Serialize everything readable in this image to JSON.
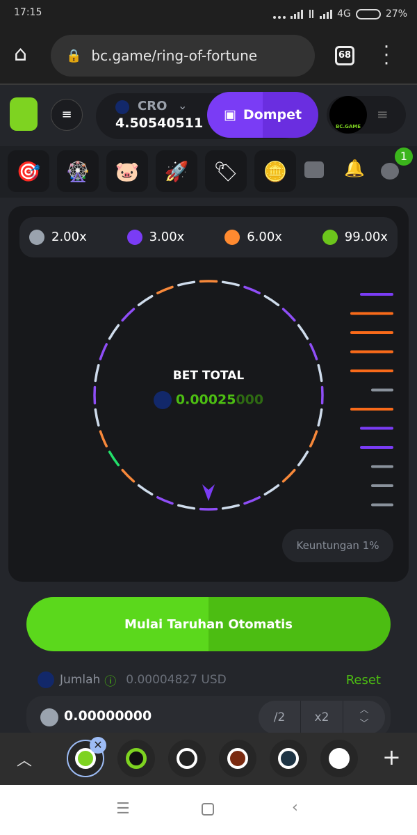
{
  "status": {
    "time": "17:15",
    "network": "4G",
    "battery": "27%"
  },
  "browser": {
    "url": "bc.game/ring-of-fortune",
    "tab_count": "68"
  },
  "header": {
    "currency": "CRO",
    "balance": "4.50540511",
    "wallet_label": "Dompet",
    "avatar_text": "BC.GAME"
  },
  "quick_icons": [
    "target-icon",
    "wheel-icon",
    "piggy-bank-icon",
    "rocket-icon",
    "price-tag-icon",
    "coin-icon"
  ],
  "chat_badge": "1",
  "multipliers": [
    {
      "label": "2.00x",
      "color": "#9aa3ae"
    },
    {
      "label": "3.00x",
      "color": "#7a3cf5"
    },
    {
      "label": "6.00x",
      "color": "#ff8a30"
    },
    {
      "label": "99.00x",
      "color": "#6cc51c"
    }
  ],
  "ring": {
    "title": "BET TOTAL",
    "amount_main": "0.00025",
    "amount_trail": "000",
    "segments": [
      "O",
      "W",
      "P",
      "W",
      "P",
      "W",
      "P",
      "W",
      "P",
      "W",
      "O",
      "W",
      "O",
      "W",
      "P",
      "W",
      "P",
      "W",
      "P",
      "W",
      "O",
      "G",
      "O",
      "W",
      "P",
      "W",
      "P",
      "W",
      "P",
      "W",
      "O",
      "W"
    ],
    "history": [
      "P",
      "O",
      "O",
      "O",
      "O",
      "W",
      "O",
      "P",
      "P",
      "W",
      "W",
      "W"
    ],
    "colors": {
      "O": "#f7883a",
      "W": "#cfdcec",
      "P": "#8f4ef7",
      "G": "#22e06a"
    }
  },
  "profit_label": "Keuntungan 1%",
  "auto_bet_label": "Mulai Taruhan Otomatis",
  "amount": {
    "label": "Jumlah",
    "usd": "0.00004827 USD",
    "reset": "Reset",
    "value": "0.00000000",
    "half": "/2",
    "double": "x2"
  }
}
